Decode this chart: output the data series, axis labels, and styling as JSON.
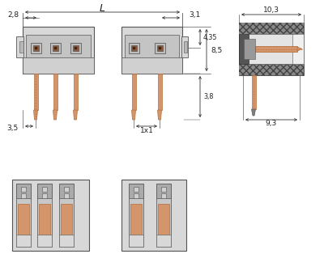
{
  "bg_color": "#ffffff",
  "gray_body": "#d8d8d8",
  "gray_inner": "#cccccc",
  "gray_light": "#e8e8e8",
  "gray_slot": "#c0c0c0",
  "border": "#555555",
  "border_dark": "#333333",
  "pin_orange": "#d4956a",
  "pin_orange_dark": "#b07040",
  "hatch_color": "#707070",
  "dim_color": "#333333",
  "ann_color": "#222222",
  "dims": {
    "L": "L",
    "d28": "2,8",
    "d31": "3,1",
    "d85": "8,5",
    "d435": "4,35",
    "d38": "3,8",
    "d35": "3,5",
    "d1x1": "1x1",
    "d103": "10,3",
    "d93": "9,3"
  }
}
